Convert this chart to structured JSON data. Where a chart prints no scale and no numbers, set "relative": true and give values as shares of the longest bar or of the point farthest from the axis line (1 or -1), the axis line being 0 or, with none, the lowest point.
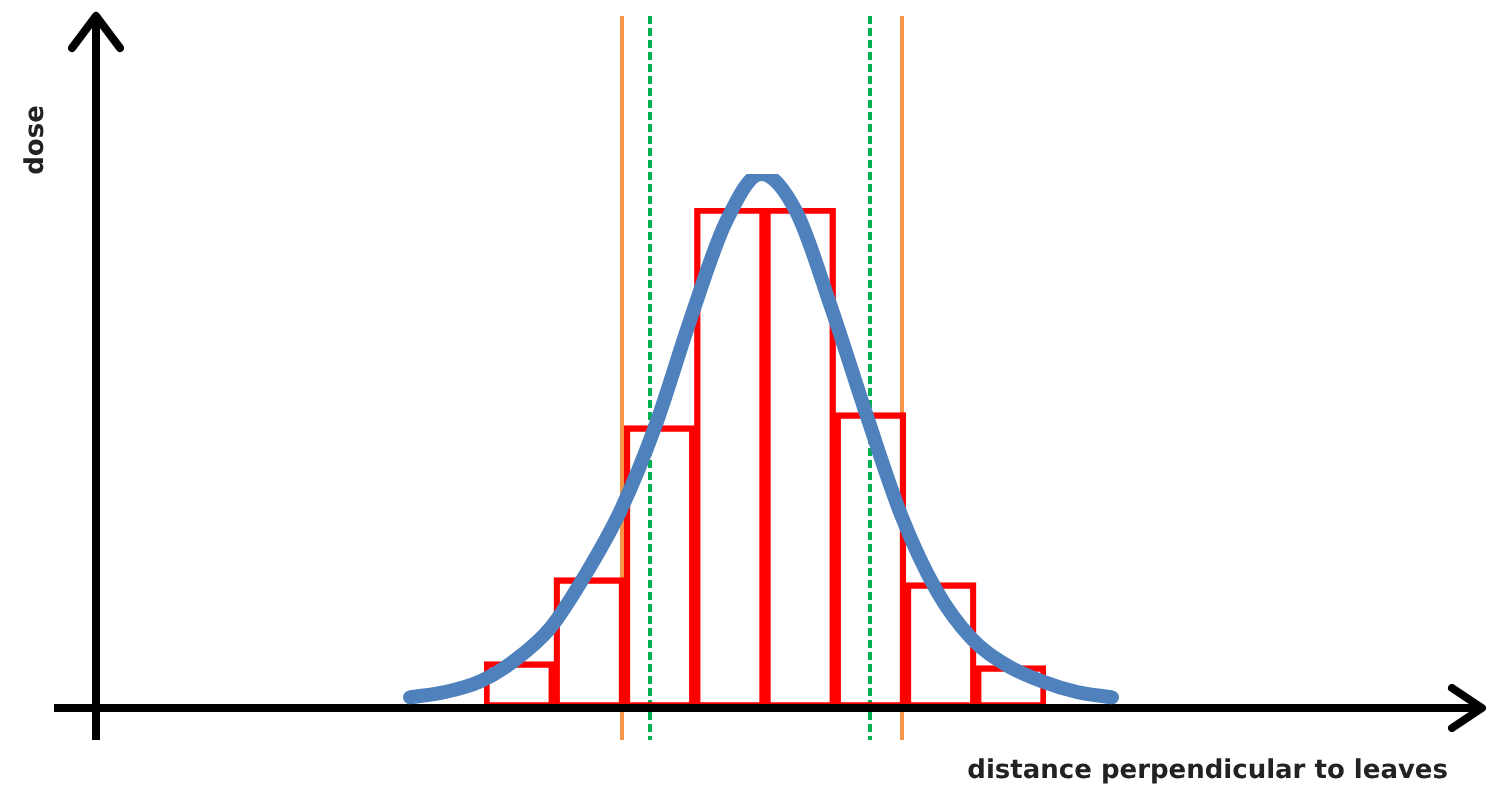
{
  "chart_data": [
    {
      "type": "bar",
      "relative": true,
      "tick_labels": false,
      "categories": [
        null,
        null,
        null,
        null,
        null,
        null,
        null,
        null
      ],
      "series": [
        {
          "color": "#ff0000",
          "values": [
            0.092,
            0.26,
            0.564,
            1,
            1,
            0.59,
            0.25,
            0.084
          ]
        }
      ]
    },
    {
      "type": "line",
      "xlabel": "distance perpendicular to leaves",
      "ylabel": "dose",
      "relative": true,
      "tick_labels": false,
      "categories": [
        null,
        null,
        null,
        null,
        null,
        null,
        null,
        null,
        null,
        null,
        null,
        null,
        null,
        null,
        null,
        null,
        null,
        null,
        null,
        null,
        null
      ],
      "series": [
        {
          "color": "#4f81bd",
          "values": [
            0.02,
            0.03,
            0.05,
            0.09,
            0.15,
            0.25,
            0.37,
            0.53,
            0.73,
            0.91,
            1,
            0.93,
            0.75,
            0.55,
            0.36,
            0.22,
            0.13,
            0.08,
            0.05,
            0.03,
            0.02
          ]
        }
      ]
    }
  ]
}
